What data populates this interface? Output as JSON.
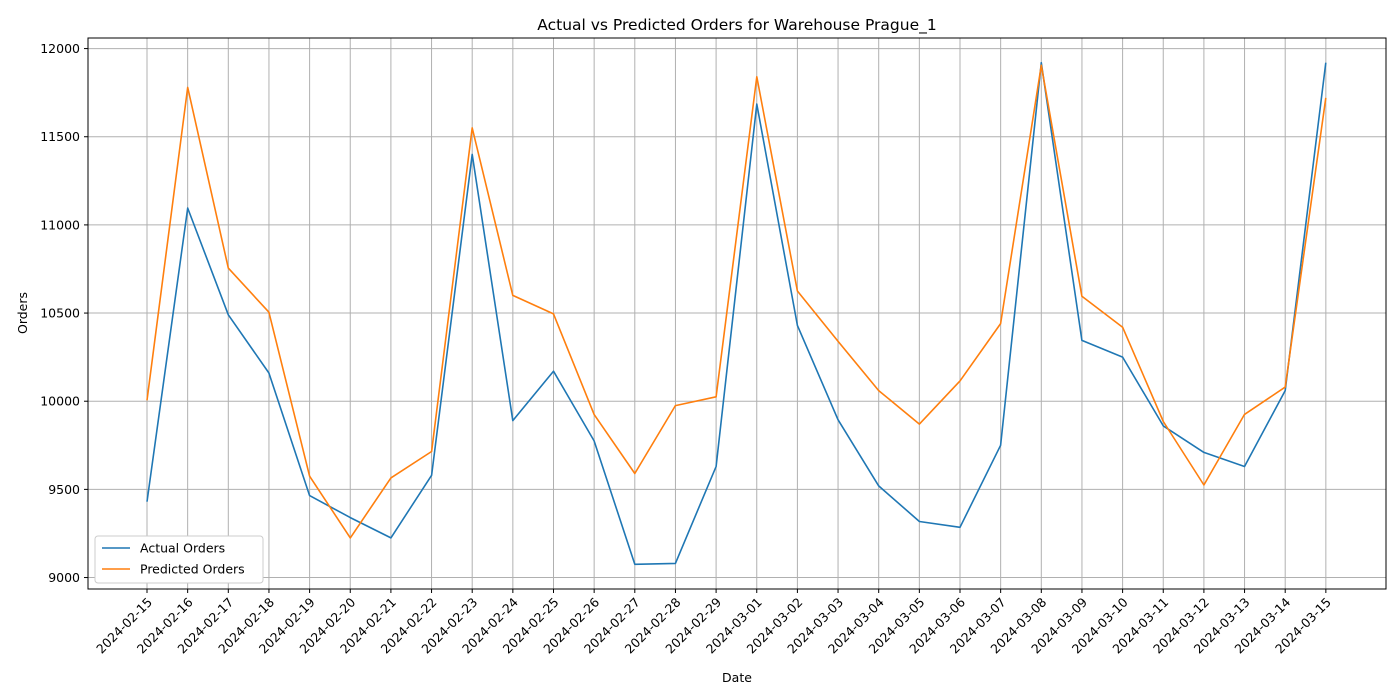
{
  "chart_data": {
    "type": "line",
    "title": "Actual vs Predicted Orders for Warehouse Prague_1",
    "xlabel": "Date",
    "ylabel": "Orders",
    "x": [
      "2024-02-15",
      "2024-02-16",
      "2024-02-17",
      "2024-02-18",
      "2024-02-19",
      "2024-02-20",
      "2024-02-21",
      "2024-02-22",
      "2024-02-23",
      "2024-02-24",
      "2024-02-25",
      "2024-02-26",
      "2024-02-27",
      "2024-02-28",
      "2024-02-29",
      "2024-03-01",
      "2024-03-02",
      "2024-03-03",
      "2024-03-04",
      "2024-03-05",
      "2024-03-06",
      "2024-03-07",
      "2024-03-08",
      "2024-03-09",
      "2024-03-10",
      "2024-03-11",
      "2024-03-12",
      "2024-03-13",
      "2024-03-14",
      "2024-03-15"
    ],
    "yticks": [
      9000,
      9500,
      10000,
      10500,
      11000,
      11500,
      12000
    ],
    "ylim": [
      8935,
      12060
    ],
    "grid": true,
    "legend_position": "lower-left",
    "series": [
      {
        "name": "Actual Orders",
        "color": "#1f77b4",
        "values": [
          9430,
          11095,
          10490,
          10160,
          9465,
          9340,
          9225,
          9580,
          11400,
          9890,
          10170,
          9775,
          9075,
          9080,
          9630,
          11685,
          10430,
          9895,
          9520,
          9318,
          9285,
          9750,
          11920,
          10345,
          10250,
          9860,
          9710,
          9630,
          10060,
          11920
        ]
      },
      {
        "name": "Predicted Orders",
        "color": "#ff7f0e",
        "values": [
          10005,
          11780,
          10755,
          10505,
          9575,
          9225,
          9565,
          9715,
          11550,
          10600,
          10495,
          9925,
          9590,
          9975,
          10025,
          11840,
          10625,
          10340,
          10060,
          9870,
          10115,
          10440,
          11905,
          10595,
          10420,
          9885,
          9525,
          9925,
          10080,
          11720
        ]
      }
    ]
  }
}
